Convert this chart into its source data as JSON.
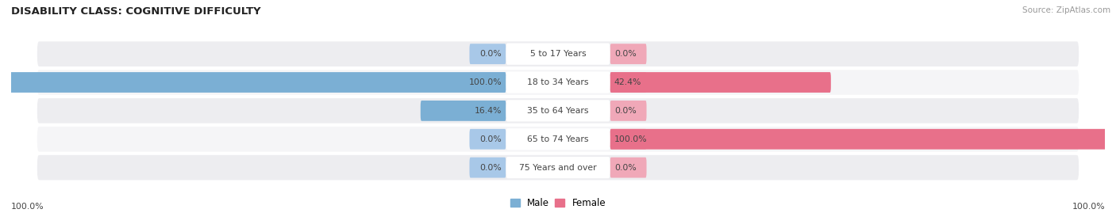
{
  "title": "DISABILITY CLASS: COGNITIVE DIFFICULTY",
  "source": "Source: ZipAtlas.com",
  "categories": [
    "5 to 17 Years",
    "18 to 34 Years",
    "35 to 64 Years",
    "65 to 74 Years",
    "75 Years and over"
  ],
  "male_values": [
    0.0,
    100.0,
    16.4,
    0.0,
    0.0
  ],
  "female_values": [
    0.0,
    42.4,
    0.0,
    100.0,
    0.0
  ],
  "male_color": "#7bafd4",
  "female_color": "#e8708a",
  "male_color_stub": "#a8c8e8",
  "female_color_stub": "#f0a8b8",
  "row_bg_color": "#e8e8ec",
  "row_bg_color2": "#f5f5f7",
  "axis_label_left": "100.0%",
  "axis_label_right": "100.0%",
  "figsize": [
    14.06,
    2.69
  ],
  "dpi": 100
}
